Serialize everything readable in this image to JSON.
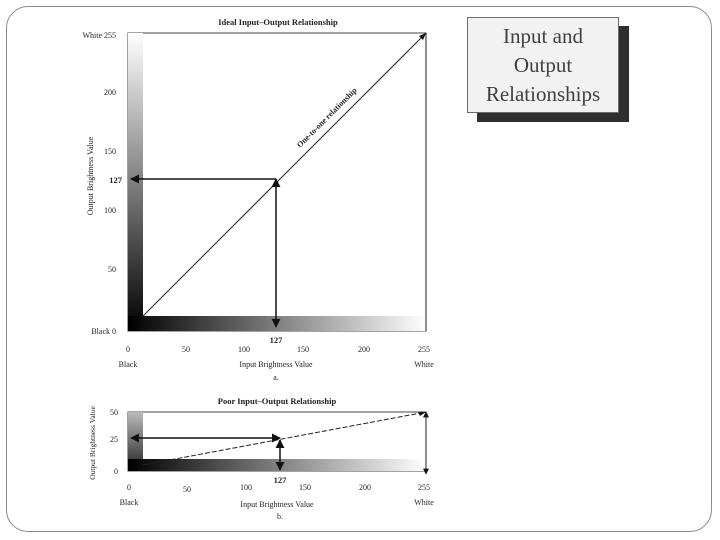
{
  "slide": {
    "title": "Input and\nOutput\nRelationships"
  },
  "diagram_a": {
    "title": "Ideal Input–Output Relationship",
    "y_axis_label": "Output Brightness Value",
    "x_axis_label": "Input Brightness Value",
    "panel_label": "a.",
    "y_ticks": [
      "White 255",
      "200",
      "150",
      "100",
      "50",
      "Black 0"
    ],
    "x_ticks": [
      "0",
      "50",
      "100",
      "150",
      "200",
      "255"
    ],
    "x_end_left": "Black",
    "x_end_right": "White",
    "diagonal_label": "One-to-one relationship",
    "marker_y": "127",
    "marker_x": "127"
  },
  "diagram_b": {
    "title": "Poor Input–Output Relationship",
    "y_axis_label": "Output Brightness Value",
    "x_axis_label": "Input Brightness Value",
    "panel_label": "b.",
    "y_ticks": [
      "50",
      "25",
      "0"
    ],
    "x_ticks": [
      "0",
      "50",
      "100",
      "150",
      "200",
      "255"
    ],
    "x_end_left": "Black",
    "x_end_right": "White",
    "marker_x": "127"
  }
}
